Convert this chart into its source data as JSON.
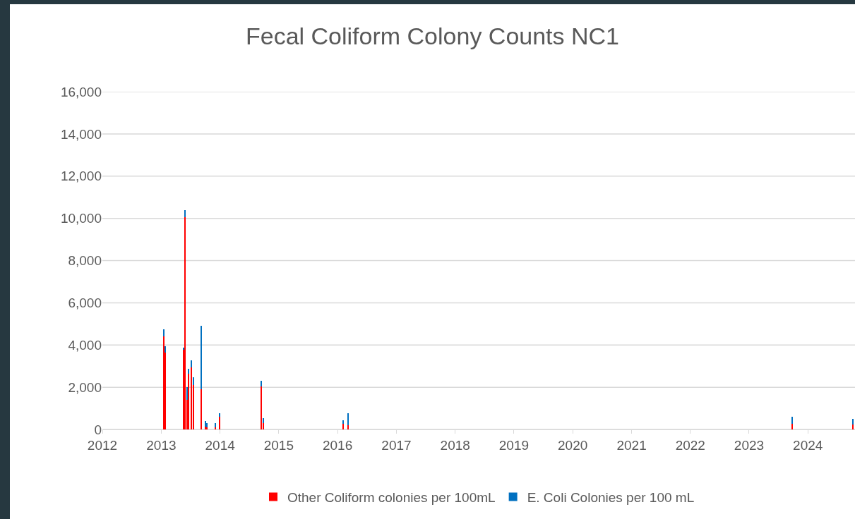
{
  "chart_data": {
    "type": "bar",
    "stacked": true,
    "title": "Fecal Coliform Colony Counts NC1",
    "x": [
      "2013-01-15",
      "2013-01-26",
      "2013-05-19",
      "2013-05-27",
      "2013-06-10",
      "2013-06-21",
      "2013-07-09",
      "2013-07-20",
      "2013-09-06",
      "2013-10-01",
      "2013-10-12",
      "2013-12-02",
      "2013-12-28",
      "2014-09-16",
      "2014-09-27",
      "2016-02-06",
      "2016-03-07",
      "2023-09-27",
      "2024-10-08"
    ],
    "series": [
      {
        "name": "Other Coliform colonies per 100mL",
        "color": "#ff0000",
        "values": [
          4400,
          3650,
          3770,
          10050,
          1400,
          2650,
          2950,
          2100,
          1900,
          150,
          100,
          100,
          600,
          2030,
          300,
          270,
          200,
          270,
          250
        ]
      },
      {
        "name": "E. Coli Colonies per 100 mL",
        "color": "#0070c0",
        "values": [
          350,
          300,
          120,
          340,
          600,
          220,
          330,
          370,
          3000,
          250,
          200,
          200,
          170,
          270,
          250,
          170,
          580,
          340,
          250
        ]
      }
    ],
    "xlim": [
      "2012-01-01",
      "2024-10-20"
    ],
    "xticks": [
      "2012",
      "2013",
      "2014",
      "2015",
      "2016",
      "2017",
      "2018",
      "2019",
      "2020",
      "2021",
      "2022",
      "2023",
      "2024"
    ],
    "ylim": [
      0,
      16000
    ],
    "yticks": [
      0,
      {
        "value": 2000,
        "label": "2,000"
      },
      {
        "value": 4000,
        "label": "4,000"
      },
      {
        "value": 6000,
        "label": "6,000"
      },
      {
        "value": 8000,
        "label": "8,000"
      },
      {
        "value": 10000,
        "label": "10,000"
      },
      {
        "value": 12000,
        "label": "12,000"
      },
      {
        "value": 14000,
        "label": "14,000"
      },
      {
        "value": 16000,
        "label": "16,000"
      }
    ],
    "grid": "y",
    "legend": "bottom"
  }
}
